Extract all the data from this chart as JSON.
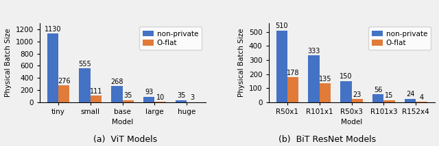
{
  "vit": {
    "categories": [
      "tiny",
      "small",
      "base",
      "large",
      "huge"
    ],
    "non_private": [
      1130,
      555,
      268,
      93,
      35
    ],
    "o_flat": [
      276,
      111,
      35,
      10,
      3
    ],
    "ylim": [
      0,
      1300
    ],
    "yticks": [
      0,
      200,
      400,
      600,
      800,
      1000,
      1200
    ],
    "xlabel": "Model",
    "ylabel": "Physical Batch Size",
    "title": "(a)  ViT Models"
  },
  "bit": {
    "categories": [
      "R50x1",
      "R101x1",
      "R50x3",
      "R101x3",
      "R152x4"
    ],
    "non_private": [
      510,
      333,
      150,
      56,
      24
    ],
    "o_flat": [
      178,
      135,
      23,
      15,
      4
    ],
    "ylim": [
      0,
      560
    ],
    "yticks": [
      0,
      100,
      200,
      300,
      400,
      500
    ],
    "xlabel": "Model",
    "ylabel": "Physical Batch Size",
    "title": "(b)  BiT ResNet Models"
  },
  "color_non_private": "#4472c4",
  "color_o_flat": "#e07b39",
  "legend_labels": [
    "non-private",
    "O-flat"
  ],
  "bar_width": 0.35,
  "label_fontsize": 7.5,
  "tick_fontsize": 7.5,
  "title_fontsize": 9,
  "legend_fontsize": 7.5,
  "annotation_fontsize": 7,
  "bg_color": "#f0f0f0"
}
